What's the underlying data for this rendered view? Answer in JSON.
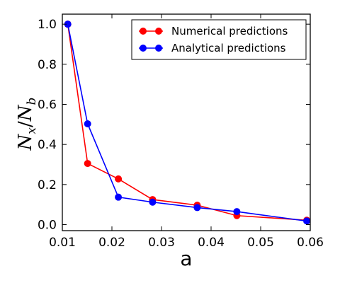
{
  "chart_data": {
    "type": "line",
    "xlabel": "a",
    "ylabel": "N_x/N_b",
    "ylabel_parts": {
      "main1": "N",
      "sub1": "x",
      "slash": "/",
      "main2": "N",
      "sub2": "b"
    },
    "xlim": [
      0.01,
      0.06
    ],
    "ylim": [
      -0.03,
      1.05
    ],
    "xticks": [
      0.01,
      0.02,
      0.03,
      0.04,
      0.05,
      0.06
    ],
    "xtick_labels": [
      "0.01",
      "0.02",
      "0.03",
      "0.04",
      "0.05",
      "0.06"
    ],
    "yticks": [
      0.0,
      0.2,
      0.4,
      0.6,
      0.8,
      1.0
    ],
    "ytick_labels": [
      "0.0",
      "0.2",
      "0.4",
      "0.6",
      "0.8",
      "1.0"
    ],
    "grid": false,
    "legend_position": "top-right",
    "series": [
      {
        "name": "Numerical predictions",
        "color": "#ff0000",
        "x": [
          0.0111,
          0.0151,
          0.0213,
          0.0282,
          0.0372,
          0.0452,
          0.0593
        ],
        "y": [
          1.0,
          0.305,
          0.228,
          0.125,
          0.097,
          0.045,
          0.022
        ]
      },
      {
        "name": "Analytical predictions",
        "color": "#0000ff",
        "x": [
          0.0111,
          0.0151,
          0.0213,
          0.0282,
          0.0372,
          0.0452,
          0.0593
        ],
        "y": [
          1.0,
          0.503,
          0.137,
          0.112,
          0.085,
          0.065,
          0.018
        ]
      }
    ]
  }
}
